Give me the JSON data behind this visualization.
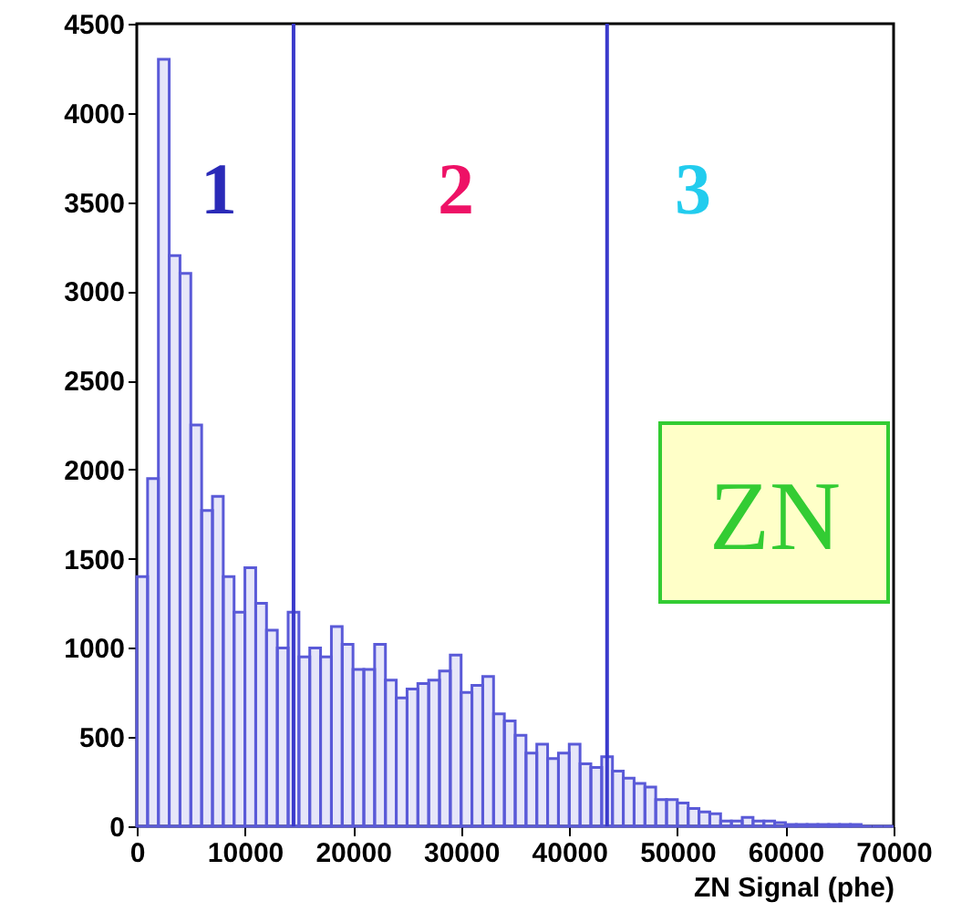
{
  "chart_data": {
    "type": "histogram",
    "xlabel": "ZN Signal (phe)",
    "bins": [
      0,
      1000,
      2000,
      3000,
      4000,
      5000,
      6000,
      7000,
      8000,
      9000,
      10000,
      11000,
      12000,
      13000,
      14000,
      15000,
      16000,
      17000,
      18000,
      19000,
      20000,
      21000,
      22000,
      23000,
      24000,
      25000,
      26000,
      27000,
      28000,
      29000,
      30000,
      31000,
      32000,
      33000,
      34000,
      35000,
      36000,
      37000,
      38000,
      39000,
      40000,
      41000,
      42000,
      43000,
      44000,
      45000,
      46000,
      47000,
      48000,
      49000,
      50000,
      51000,
      52000,
      53000,
      54000,
      55000,
      56000,
      57000,
      58000,
      59000,
      60000,
      61000,
      62000,
      63000,
      64000,
      65000,
      66000,
      67000,
      68000,
      69000,
      70000
    ],
    "values": [
      1400,
      1950,
      4300,
      3200,
      3100,
      2250,
      1770,
      1850,
      1400,
      1200,
      1450,
      1250,
      1100,
      1000,
      1200,
      950,
      1000,
      950,
      1120,
      1020,
      880,
      880,
      1020,
      820,
      720,
      770,
      800,
      820,
      870,
      960,
      750,
      790,
      840,
      630,
      590,
      510,
      410,
      460,
      380,
      410,
      460,
      350,
      330,
      390,
      310,
      270,
      240,
      220,
      150,
      150,
      130,
      100,
      80,
      70,
      30,
      30,
      50,
      30,
      30,
      20,
      10,
      10,
      10,
      10,
      10,
      10,
      10,
      0,
      0,
      0
    ],
    "color": "#5a5ad8",
    "xlim": [
      0,
      70000
    ],
    "xticks": [
      0,
      10000,
      20000,
      30000,
      40000,
      50000,
      60000,
      70000
    ],
    "ylim": [
      0,
      4500
    ],
    "yticks": [
      0,
      500,
      1000,
      1500,
      2000,
      2500,
      3000,
      3500,
      4000,
      4500
    ],
    "ref_lines": [
      {
        "axis": "x",
        "value": 14500,
        "color": "#3a3acc"
      },
      {
        "axis": "x",
        "value": 43500,
        "color": "#3a3acc"
      }
    ],
    "annotations": [
      "1",
      "2",
      "3",
      "ZN"
    ],
    "grid": false
  }
}
